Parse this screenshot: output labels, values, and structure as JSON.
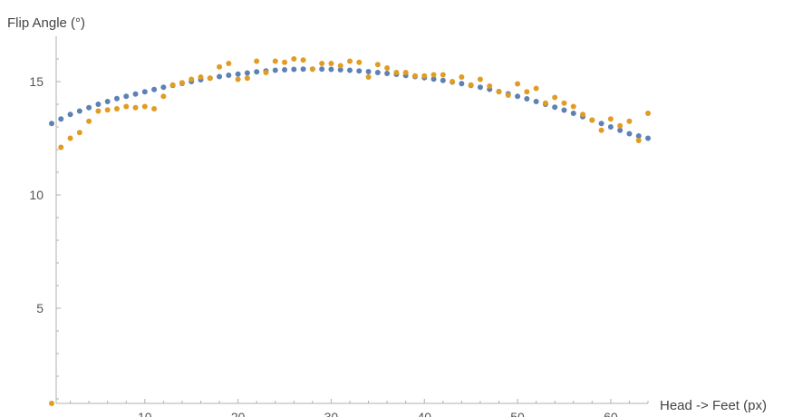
{
  "chart_data": {
    "type": "scatter",
    "title": "",
    "ylabel": "Flip Angle (°)",
    "xlabel": "Head -> Feet (px)",
    "xlim": [
      0,
      64
    ],
    "ylim": [
      0.8,
      17
    ],
    "x_ticks": [
      10,
      20,
      30,
      40,
      50,
      60
    ],
    "y_ticks": [
      5,
      10,
      15
    ],
    "grid": false,
    "legend": "none",
    "series": [
      {
        "color": "#5E81B5",
        "x": [
          0,
          1,
          2,
          3,
          4,
          5,
          6,
          7,
          8,
          9,
          10,
          11,
          12,
          13,
          14,
          15,
          16,
          17,
          18,
          19,
          20,
          21,
          22,
          23,
          24,
          25,
          26,
          27,
          28,
          29,
          30,
          31,
          32,
          33,
          34,
          35,
          36,
          37,
          38,
          39,
          40,
          41,
          42,
          43,
          44,
          45,
          46,
          47,
          48,
          49,
          50,
          51,
          52,
          53,
          54,
          55,
          56,
          57,
          58,
          59,
          60,
          61,
          62,
          63,
          64
        ],
        "values": [
          13.15,
          13.35,
          13.55,
          13.7,
          13.85,
          14.0,
          14.12,
          14.25,
          14.35,
          14.45,
          14.55,
          14.65,
          14.75,
          14.83,
          14.92,
          15.0,
          15.08,
          15.15,
          15.22,
          15.28,
          15.33,
          15.38,
          15.43,
          15.47,
          15.5,
          15.52,
          15.54,
          15.55,
          15.55,
          15.55,
          15.54,
          15.52,
          15.5,
          15.47,
          15.44,
          15.4,
          15.36,
          15.32,
          15.27,
          15.22,
          15.17,
          15.11,
          15.05,
          14.98,
          14.91,
          14.83,
          14.75,
          14.66,
          14.56,
          14.46,
          14.35,
          14.24,
          14.12,
          14.0,
          13.87,
          13.74,
          13.6,
          13.45,
          13.3,
          13.15,
          13.0,
          12.85,
          12.7,
          12.6,
          12.5
        ]
      },
      {
        "color": "#E19C24",
        "x": [
          0,
          1,
          2,
          3,
          4,
          5,
          6,
          7,
          8,
          9,
          10,
          11,
          12,
          13,
          14,
          15,
          16,
          17,
          18,
          19,
          20,
          21,
          22,
          23,
          24,
          25,
          26,
          27,
          28,
          29,
          30,
          31,
          32,
          33,
          34,
          35,
          36,
          37,
          38,
          39,
          40,
          41,
          42,
          43,
          44,
          45,
          46,
          47,
          48,
          49,
          50,
          51,
          52,
          53,
          54,
          55,
          56,
          57,
          58,
          59,
          60,
          61,
          62,
          63,
          64
        ],
        "values": [
          0.8,
          12.1,
          12.5,
          12.75,
          13.25,
          13.7,
          13.75,
          13.8,
          13.9,
          13.85,
          13.9,
          13.8,
          14.35,
          14.85,
          14.95,
          15.1,
          15.2,
          15.15,
          15.65,
          15.8,
          15.1,
          15.15,
          15.9,
          15.4,
          15.9,
          15.85,
          16.0,
          15.95,
          15.55,
          15.8,
          15.8,
          15.7,
          15.9,
          15.85,
          15.2,
          15.75,
          15.6,
          15.4,
          15.4,
          15.25,
          15.25,
          15.3,
          15.3,
          15.0,
          15.2,
          14.85,
          15.1,
          14.8,
          14.55,
          14.4,
          14.9,
          14.55,
          14.7,
          14.05,
          14.3,
          14.05,
          13.9,
          13.55,
          13.3,
          12.85,
          13.35,
          13.05,
          13.25,
          12.4,
          13.6
        ]
      }
    ]
  }
}
